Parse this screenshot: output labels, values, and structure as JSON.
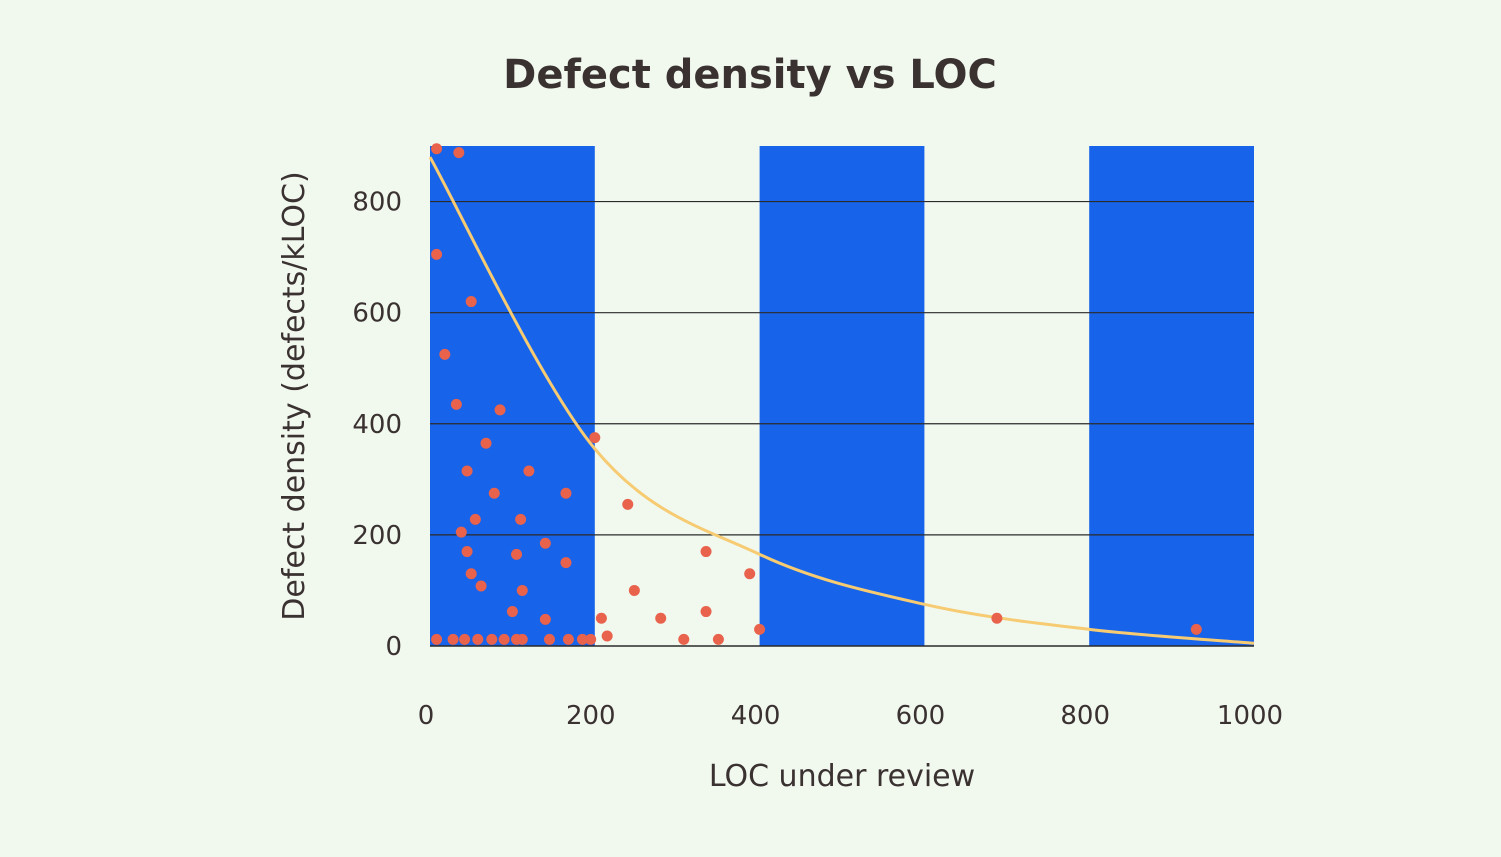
{
  "chart_data": {
    "type": "scatter",
    "title": "Defect density vs LOC",
    "xlabel": "LOC under review",
    "ylabel": "Defect density (defects/kLOC)",
    "xlim": [
      0,
      1000
    ],
    "ylim": [
      0,
      900
    ],
    "x_ticks": [
      0,
      200,
      400,
      600,
      800,
      1000
    ],
    "y_ticks": [
      0,
      200,
      400,
      600,
      800
    ],
    "grid": "horizontal",
    "background_bands": [
      [
        0,
        200
      ],
      [
        400,
        600
      ],
      [
        800,
        1000
      ]
    ],
    "colors": {
      "background": "#f1f8ee",
      "band": "#1763ea",
      "points": "#e8624c",
      "trend": "#f6cb72",
      "grid": "#2b2b2b",
      "text": "#3a3131"
    },
    "trend_curve": {
      "type": "exponential decay",
      "points": [
        [
          0,
          880
        ],
        [
          200,
          355
        ],
        [
          400,
          165
        ],
        [
          600,
          75
        ],
        [
          800,
          30
        ],
        [
          1000,
          5
        ]
      ]
    },
    "points": [
      [
        8,
        895
      ],
      [
        35,
        888
      ],
      [
        8,
        705
      ],
      [
        50,
        620
      ],
      [
        18,
        525
      ],
      [
        32,
        435
      ],
      [
        85,
        425
      ],
      [
        68,
        365
      ],
      [
        45,
        315
      ],
      [
        120,
        315
      ],
      [
        78,
        275
      ],
      [
        165,
        275
      ],
      [
        55,
        228
      ],
      [
        110,
        228
      ],
      [
        38,
        205
      ],
      [
        45,
        170
      ],
      [
        105,
        165
      ],
      [
        140,
        185
      ],
      [
        165,
        150
      ],
      [
        50,
        130
      ],
      [
        62,
        108
      ],
      [
        112,
        100
      ],
      [
        100,
        62
      ],
      [
        140,
        48
      ],
      [
        8,
        12
      ],
      [
        28,
        12
      ],
      [
        42,
        12
      ],
      [
        58,
        12
      ],
      [
        75,
        12
      ],
      [
        90,
        12
      ],
      [
        105,
        12
      ],
      [
        112,
        12
      ],
      [
        145,
        12
      ],
      [
        168,
        12
      ],
      [
        185,
        12
      ],
      [
        195,
        12
      ],
      [
        200,
        375
      ],
      [
        208,
        50
      ],
      [
        215,
        18
      ],
      [
        240,
        255
      ],
      [
        248,
        100
      ],
      [
        280,
        50
      ],
      [
        308,
        12
      ],
      [
        335,
        170
      ],
      [
        335,
        62
      ],
      [
        350,
        12
      ],
      [
        388,
        130
      ],
      [
        400,
        30
      ],
      [
        688,
        50
      ],
      [
        930,
        30
      ]
    ]
  }
}
